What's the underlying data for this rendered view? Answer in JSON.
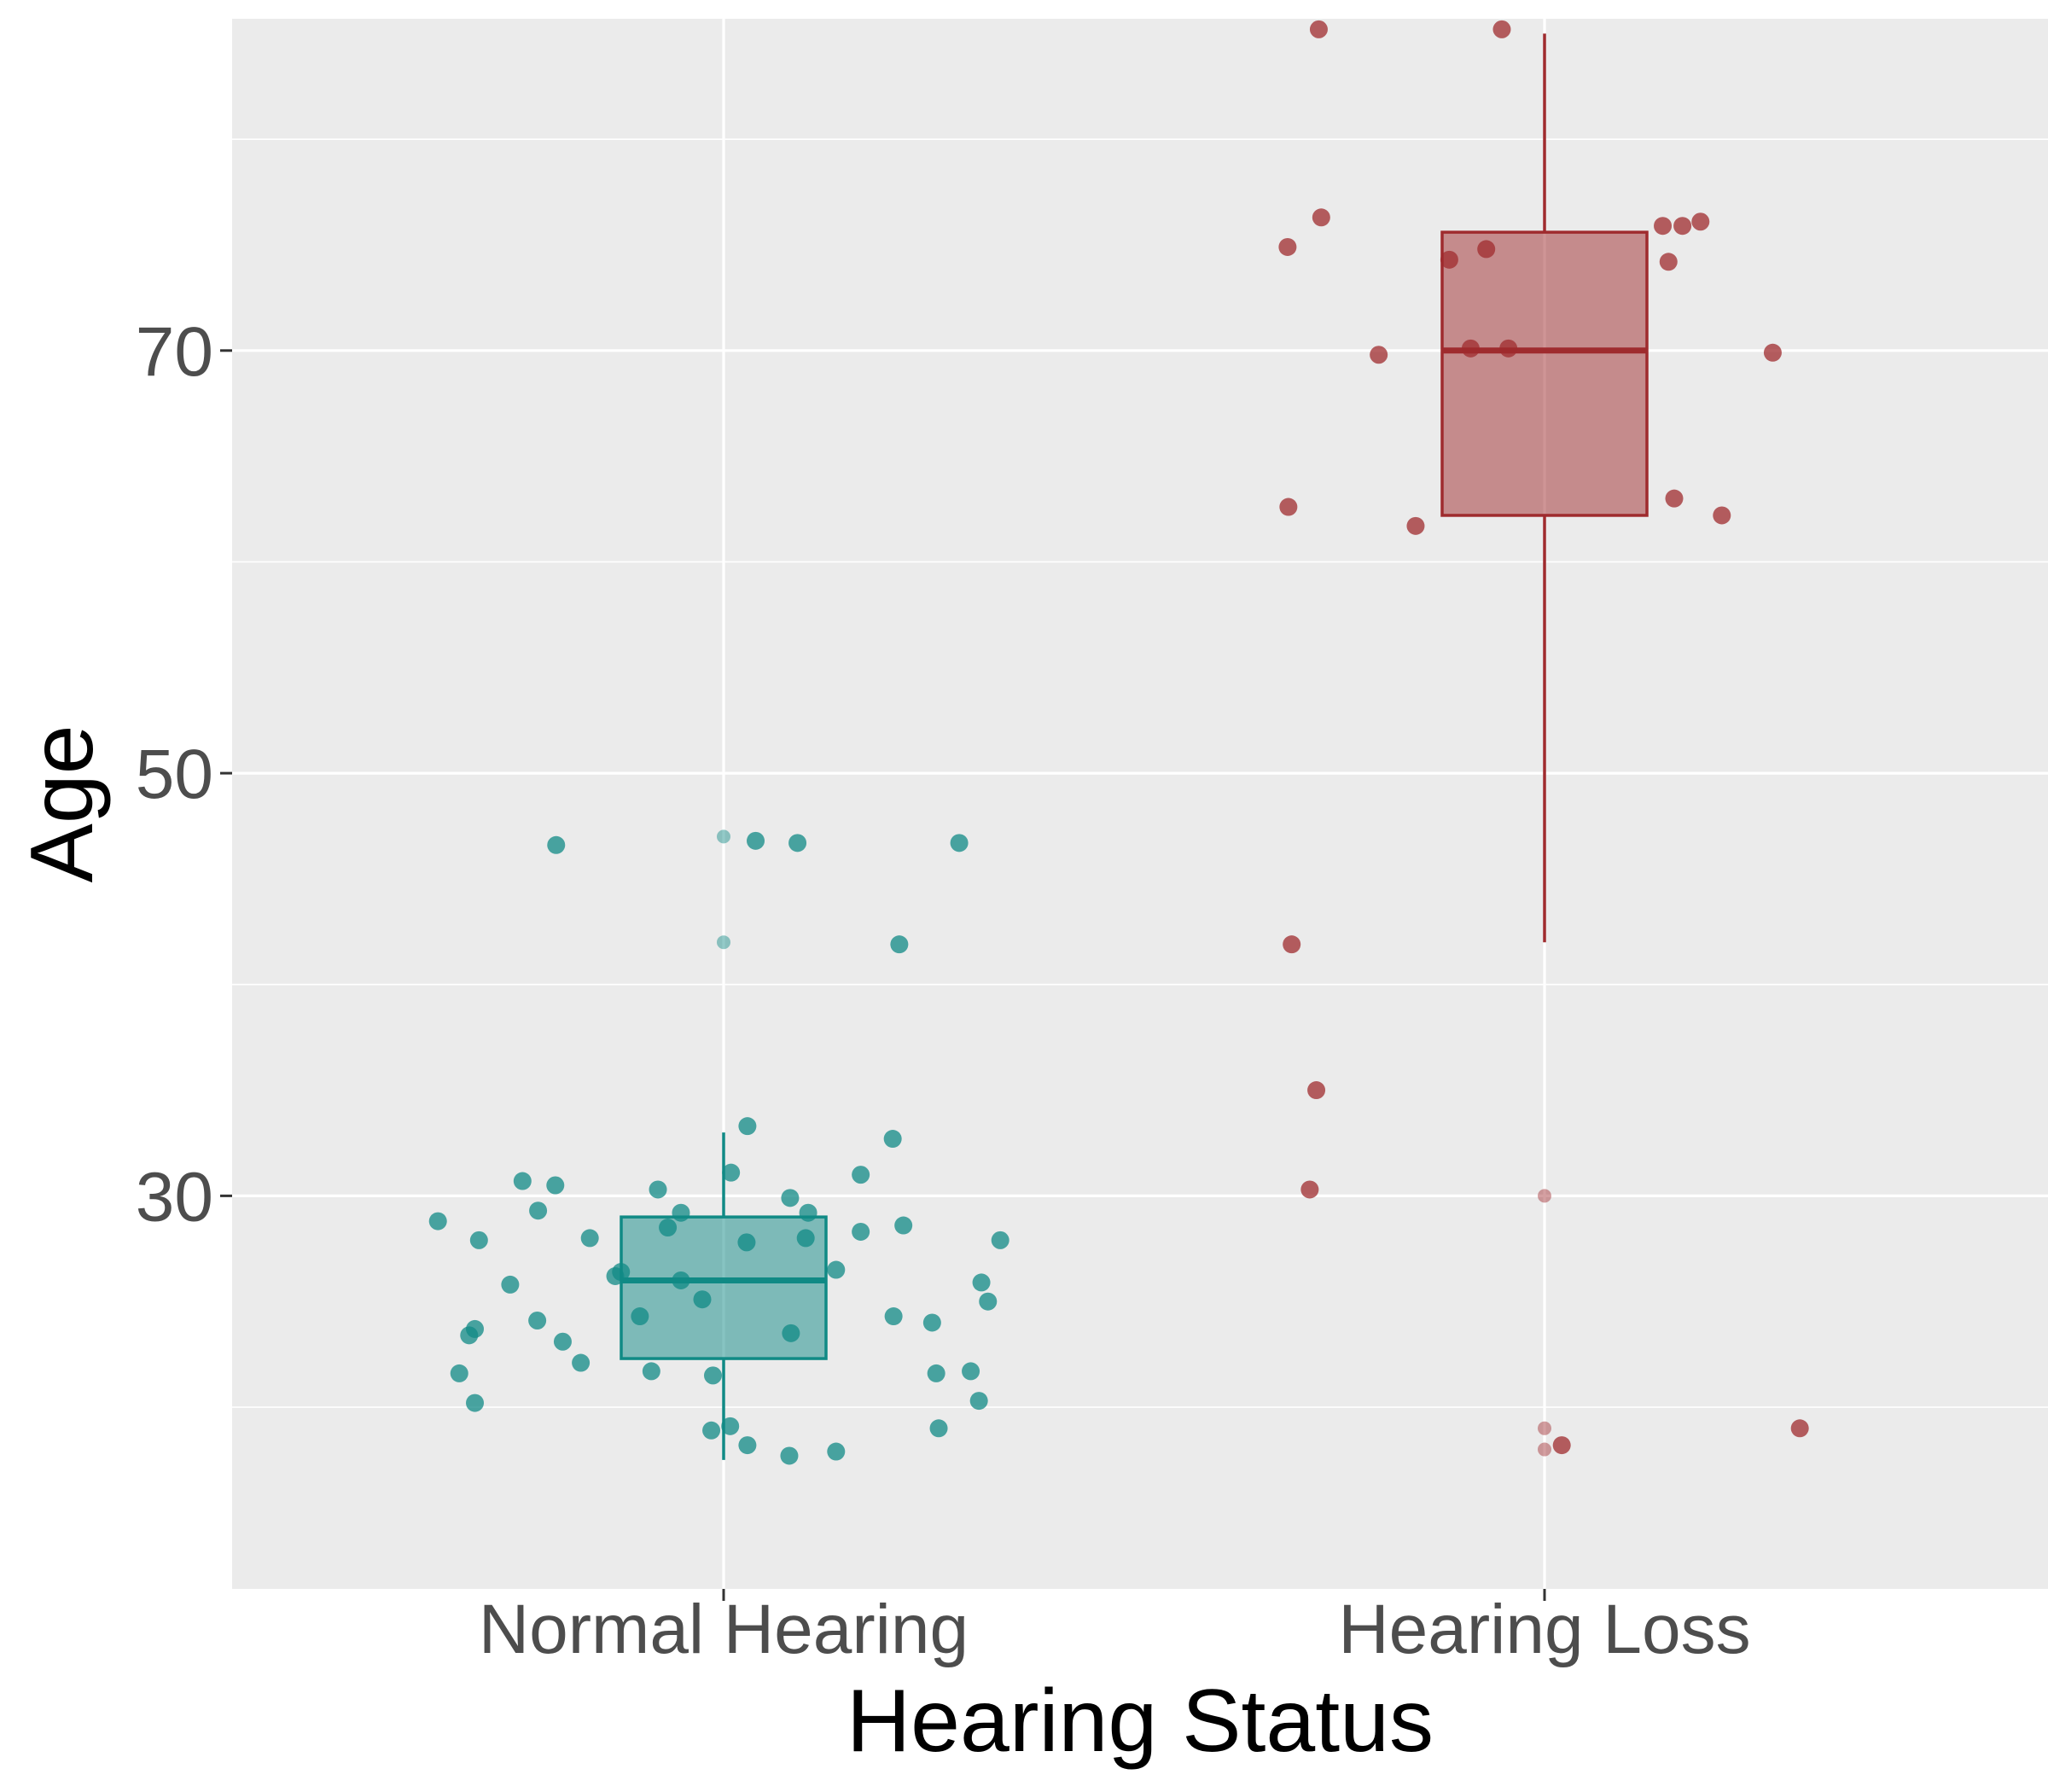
{
  "chart_data": {
    "type": "box",
    "title": "",
    "xlabel": "Hearing Status",
    "ylabel": "Age",
    "categories": [
      "Normal Hearing",
      "Hearing Loss"
    ],
    "ylim": [
      11.4,
      85.7
    ],
    "yticks": [
      30,
      50,
      70
    ],
    "grid": true,
    "legend": "none",
    "colors": {
      "panel": "#ebebeb",
      "grid": "#ffffff",
      "normal": "#108a85",
      "loss": "#9f2b2e",
      "tick_text": "#4d4d4d"
    },
    "series": [
      {
        "category": "Normal Hearing",
        "box": {
          "whisker_low": 17.5,
          "q1": 22.3,
          "median": 26.0,
          "q3": 29.0,
          "whisker_high": 33.0
        },
        "outliers": [
          47.0,
          42.0
        ],
        "points": [
          {
            "x": -0.348,
            "y": 28.8
          },
          {
            "x": -0.298,
            "y": 27.9
          },
          {
            "x": -0.322,
            "y": 21.6
          },
          {
            "x": -0.303,
            "y": 23.7
          },
          {
            "x": -0.31,
            "y": 23.4
          },
          {
            "x": -0.303,
            "y": 20.2
          },
          {
            "x": -0.245,
            "y": 30.7
          },
          {
            "x": -0.26,
            "y": 25.8
          },
          {
            "x": -0.227,
            "y": 24.1
          },
          {
            "x": -0.226,
            "y": 29.3
          },
          {
            "x": -0.205,
            "y": 30.5
          },
          {
            "x": -0.196,
            "y": 23.1
          },
          {
            "x": -0.174,
            "y": 22.1
          },
          {
            "x": -0.163,
            "y": 28.0
          },
          {
            "x": -0.204,
            "y": 46.6
          },
          {
            "x": -0.132,
            "y": 26.2
          },
          {
            "x": -0.125,
            "y": 26.4
          },
          {
            "x": -0.102,
            "y": 24.3
          },
          {
            "x": -0.088,
            "y": 21.7
          },
          {
            "x": -0.08,
            "y": 30.3
          },
          {
            "x": -0.068,
            "y": 28.5
          },
          {
            "x": -0.052,
            "y": 29.2
          },
          {
            "x": -0.052,
            "y": 26.0
          },
          {
            "x": -0.026,
            "y": 25.1
          },
          {
            "x": -0.013,
            "y": 21.5
          },
          {
            "x": -0.015,
            "y": 18.9
          },
          {
            "x": 0.009,
            "y": 31.1
          },
          {
            "x": 0.008,
            "y": 19.1
          },
          {
            "x": 0.029,
            "y": 33.3
          },
          {
            "x": 0.028,
            "y": 27.8
          },
          {
            "x": 0.029,
            "y": 18.2
          },
          {
            "x": 0.039,
            "y": 46.8
          },
          {
            "x": 0.081,
            "y": 29.9
          },
          {
            "x": 0.082,
            "y": 23.5
          },
          {
            "x": 0.08,
            "y": 17.7
          },
          {
            "x": 0.09,
            "y": 46.7
          },
          {
            "x": 0.1,
            "y": 28.0
          },
          {
            "x": 0.103,
            "y": 29.2
          },
          {
            "x": 0.137,
            "y": 26.5
          },
          {
            "x": 0.137,
            "y": 17.9
          },
          {
            "x": 0.167,
            "y": 28.3
          },
          {
            "x": 0.167,
            "y": 31.0
          },
          {
            "x": 0.206,
            "y": 32.7
          },
          {
            "x": 0.207,
            "y": 24.3
          },
          {
            "x": 0.219,
            "y": 28.6
          },
          {
            "x": 0.214,
            "y": 41.9
          },
          {
            "x": 0.254,
            "y": 24.0
          },
          {
            "x": 0.259,
            "y": 21.6
          },
          {
            "x": 0.262,
            "y": 19.0
          },
          {
            "x": 0.287,
            "y": 46.7
          },
          {
            "x": 0.301,
            "y": 21.7
          },
          {
            "x": 0.311,
            "y": 20.3
          },
          {
            "x": 0.314,
            "y": 25.9
          },
          {
            "x": 0.322,
            "y": 25.0
          },
          {
            "x": 0.337,
            "y": 27.9
          }
        ]
      },
      {
        "category": "Hearing Loss",
        "box": {
          "whisker_low": 42.0,
          "q1": 62.2,
          "median": 70.0,
          "q3": 75.6,
          "whisker_high": 85.0
        },
        "outliers": [
          30.0,
          19.0,
          18.0
        ],
        "points": [
          {
            "x": -0.278,
            "y": 35.0
          },
          {
            "x": -0.275,
            "y": 85.2
          },
          {
            "x": -0.272,
            "y": 76.3
          },
          {
            "x": -0.313,
            "y": 74.9
          },
          {
            "x": -0.312,
            "y": 62.6
          },
          {
            "x": -0.308,
            "y": 41.9
          },
          {
            "x": -0.286,
            "y": 30.3
          },
          {
            "x": -0.202,
            "y": 69.8
          },
          {
            "x": -0.157,
            "y": 61.7
          },
          {
            "x": -0.116,
            "y": 74.3
          },
          {
            "x": -0.09,
            "y": 70.1
          },
          {
            "x": -0.071,
            "y": 74.8
          },
          {
            "x": -0.052,
            "y": 85.2
          },
          {
            "x": -0.044,
            "y": 70.1
          },
          {
            "x": 0.021,
            "y": 18.2
          },
          {
            "x": 0.144,
            "y": 75.9
          },
          {
            "x": 0.168,
            "y": 75.9
          },
          {
            "x": 0.19,
            "y": 76.1
          },
          {
            "x": 0.151,
            "y": 74.2
          },
          {
            "x": 0.158,
            "y": 63.0
          },
          {
            "x": 0.216,
            "y": 62.2
          },
          {
            "x": 0.278,
            "y": 69.9
          },
          {
            "x": 0.311,
            "y": 19.0
          }
        ]
      }
    ]
  }
}
